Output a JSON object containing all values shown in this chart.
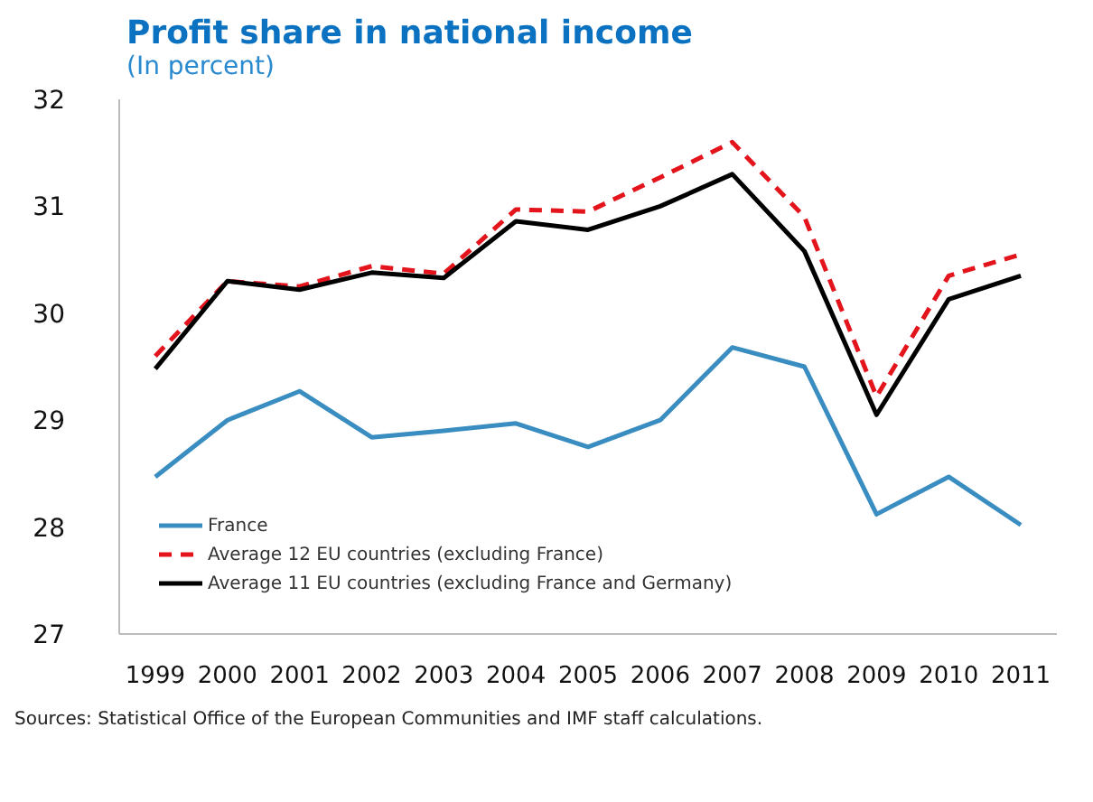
{
  "chart_data": {
    "type": "line",
    "title": "Profit share in national income",
    "subtitle": "(In percent)",
    "categories": [
      "1999",
      "2000",
      "2001",
      "2002",
      "2003",
      "2004",
      "2005",
      "2006",
      "2007",
      "2008",
      "2009",
      "2010",
      "2011"
    ],
    "series": [
      {
        "name": "France",
        "color": "#3a8dc0",
        "line_style": "solid",
        "values": [
          28.47,
          29.0,
          29.27,
          28.84,
          28.9,
          28.97,
          28.75,
          29.0,
          29.68,
          29.5,
          28.12,
          28.47,
          28.02
        ]
      },
      {
        "name": "Average 12 EU  countries (excluding  France)",
        "color": "#e3141b",
        "line_style": "dashed",
        "values": [
          29.6,
          30.3,
          30.25,
          30.44,
          30.37,
          30.97,
          30.95,
          31.27,
          31.6,
          30.9,
          29.22,
          30.35,
          30.55
        ]
      },
      {
        "name": "Average 11 EU  countries (excluding  France and Germany)",
        "color": "#000000",
        "line_style": "solid",
        "values": [
          29.48,
          30.3,
          30.22,
          30.38,
          30.33,
          30.86,
          30.78,
          31.0,
          31.3,
          30.58,
          29.05,
          30.13,
          30.35
        ]
      }
    ],
    "ylim": [
      27,
      32
    ],
    "yticks": [
      27,
      28,
      29,
      30,
      31,
      32
    ],
    "grid": false,
    "legend": "bottom left",
    "marker": "none",
    "annotations": [
      "Sources: Statistical Office of the European Communities and IMF staff calculations."
    ]
  }
}
